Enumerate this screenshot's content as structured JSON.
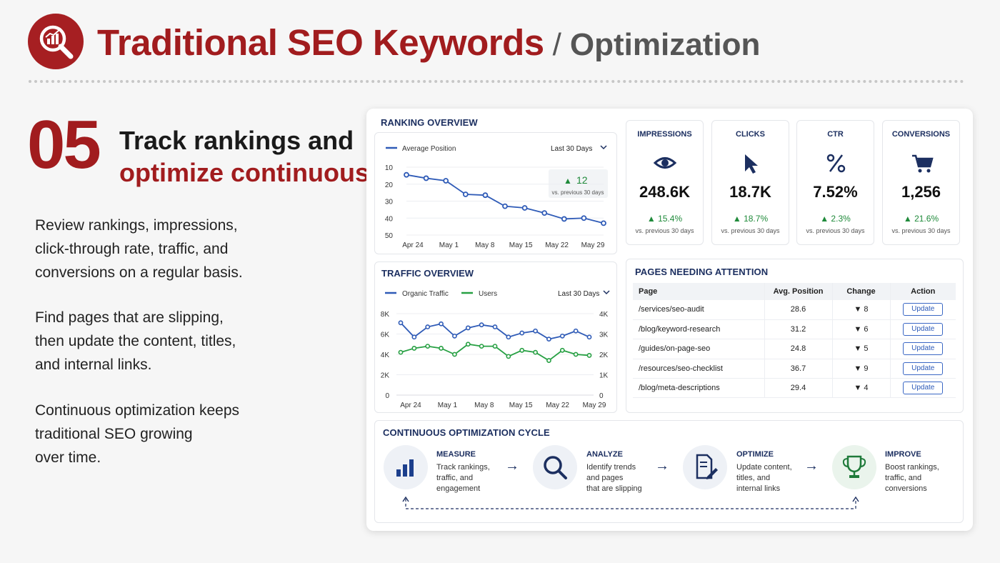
{
  "header": {
    "title_main": "Traditional SEO Keywords",
    "title_slash": "/",
    "title_sub": "Optimization",
    "logo_icon": "search-chart-icon"
  },
  "step": {
    "number": "05",
    "headline_line1": "Track rankings and",
    "headline_line2": "optimize continuously",
    "para1": [
      "Review rankings, impressions,",
      "click-through rate, traffic, and",
      "conversions on a regular basis."
    ],
    "para2": [
      "Find pages that are slipping,",
      "then update the content, titles,",
      "and internal links."
    ],
    "para3": [
      "Continuous optimization keeps",
      "traditional SEO growing",
      "over time."
    ]
  },
  "ranking": {
    "title": "RANKING OVERVIEW",
    "legend": "Average Position",
    "range": "Last 30 Days",
    "badge_value": "12",
    "badge_note": "vs. previous 30 days"
  },
  "traffic": {
    "title": "TRAFFIC OVERVIEW",
    "legend1": "Organic Traffic",
    "legend2": "Users",
    "range": "Last 30 Days"
  },
  "metrics": [
    {
      "label": "IMPRESSIONS",
      "icon": "eye-icon",
      "value": "248.6K",
      "delta": "▲ 15.4%",
      "note": "vs. previous 30 days"
    },
    {
      "label": "CLICKS",
      "icon": "cursor-icon",
      "value": "18.7K",
      "delta": "▲ 18.7%",
      "note": "vs. previous 30 days"
    },
    {
      "label": "CTR",
      "icon": "percent-icon",
      "value": "7.52%",
      "delta": "▲ 2.3%",
      "note": "vs. previous 30 days"
    },
    {
      "label": "CONVERSIONS",
      "icon": "cart-icon",
      "value": "1,256",
      "delta": "▲ 21.6%",
      "note": "vs. previous 30 days"
    }
  ],
  "pages": {
    "title": "PAGES NEEDING ATTENTION",
    "columns": [
      "Page",
      "Avg. Position",
      "Change",
      "Action"
    ],
    "rows": [
      {
        "page": "/services/seo-audit",
        "pos": "28.6",
        "change": "▼ 8",
        "action": "Update"
      },
      {
        "page": "/blog/keyword-research",
        "pos": "31.2",
        "change": "▼ 6",
        "action": "Update"
      },
      {
        "page": "/guides/on-page-seo",
        "pos": "24.8",
        "change": "▼ 5",
        "action": "Update"
      },
      {
        "page": "/resources/seo-checklist",
        "pos": "36.7",
        "change": "▼ 9",
        "action": "Update"
      },
      {
        "page": "/blog/meta-descriptions",
        "pos": "29.4",
        "change": "▼ 4",
        "action": "Update"
      }
    ]
  },
  "cycle": {
    "title": "CONTINUOUS OPTIMIZATION CYCLE",
    "arrow": "→",
    "steps": [
      {
        "title": "MEASURE",
        "icon": "bar-chart-icon",
        "lines": [
          "Track rankings,",
          "traffic, and",
          "engagement"
        ]
      },
      {
        "title": "ANALYZE",
        "icon": "magnifier-icon",
        "lines": [
          "Identify trends",
          "and pages",
          "that are slipping"
        ]
      },
      {
        "title": "OPTIMIZE",
        "icon": "document-edit-icon",
        "lines": [
          "Update content,",
          "titles, and",
          "internal links"
        ]
      },
      {
        "title": "IMPROVE",
        "icon": "trophy-icon",
        "lines": [
          "Boost rankings,",
          "traffic, and",
          "conversions"
        ]
      }
    ]
  },
  "colors": {
    "brand_red": "#a11c1e",
    "navy": "#1c2f60",
    "line_blue": "#2f5bb7",
    "line_green": "#27a043",
    "up_green": "#1f8a3a",
    "down_red": "#c62828"
  },
  "chart_data": [
    {
      "type": "line",
      "title": "RANKING OVERVIEW",
      "x_ticks": [
        "Apr 24",
        "May 1",
        "May 8",
        "May 15",
        "May 22",
        "May 29"
      ],
      "y_ticks": [
        10,
        20,
        30,
        40,
        50
      ],
      "ylim": [
        10,
        50
      ],
      "y_inverted": true,
      "series": [
        {
          "name": "Average Position",
          "values": [
            14.5,
            16.5,
            18,
            26,
            26.5,
            33,
            34,
            37,
            40.5,
            40,
            43
          ]
        }
      ]
    },
    {
      "type": "line",
      "title": "TRAFFIC OVERVIEW",
      "x_ticks": [
        "Apr 24",
        "May 1",
        "May 8",
        "May 15",
        "May 22",
        "May 29"
      ],
      "y_left_ticks": [
        "0",
        "2K",
        "4K",
        "6K",
        "8K"
      ],
      "y_right_ticks": [
        "0",
        "1K",
        "2K",
        "3K",
        "4K"
      ],
      "ylim_left": [
        0,
        8000
      ],
      "ylim_right": [
        0,
        4000
      ],
      "series": [
        {
          "name": "Organic Traffic",
          "axis": "left",
          "values": [
            7100,
            5700,
            6700,
            7000,
            5800,
            6600,
            6900,
            6700,
            5700,
            6100,
            6300,
            5500,
            5800,
            6300,
            5700
          ]
        },
        {
          "name": "Users",
          "axis": "right",
          "values": [
            2100,
            2300,
            2400,
            2300,
            2000,
            2500,
            2400,
            2400,
            1900,
            2200,
            2100,
            1700,
            2200,
            2000,
            1950
          ]
        }
      ]
    }
  ]
}
